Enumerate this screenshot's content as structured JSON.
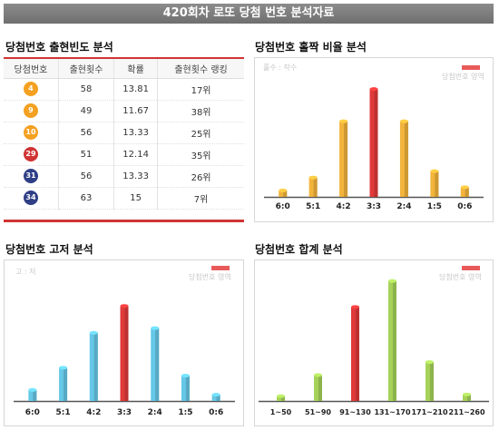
{
  "header": {
    "title": "420회차 로또 당첨 번호 분석자료"
  },
  "frequency": {
    "title": "당첨번호 출현빈도 분석",
    "columns": [
      "당첨번호",
      "출현횟수",
      "확률",
      "출현횟수 랭킹"
    ],
    "rows": [
      {
        "number": "4",
        "color": "#f4a020",
        "count": "58",
        "prob": "13.81",
        "rank": "17위"
      },
      {
        "number": "9",
        "color": "#f4a020",
        "count": "49",
        "prob": "11.67",
        "rank": "38위"
      },
      {
        "number": "10",
        "color": "#f4a020",
        "count": "56",
        "prob": "13.33",
        "rank": "25위"
      },
      {
        "number": "29",
        "color": "#d03434",
        "count": "51",
        "prob": "12.14",
        "rank": "35위"
      },
      {
        "number": "31",
        "color": "#2f3f86",
        "count": "56",
        "prob": "13.33",
        "rank": "26위"
      },
      {
        "number": "34",
        "color": "#2f3f86",
        "count": "63",
        "prob": "15",
        "rank": "7위"
      }
    ]
  },
  "legend_label": "당첨번호 영역",
  "chart_data": [
    {
      "id": "odd-even",
      "type": "bar",
      "title": "당첨번호 홀짝 비율 분석",
      "subtitle": "홀수 : 작수",
      "categories": [
        "6:0",
        "5:1",
        "4:2",
        "3:3",
        "2:4",
        "1:5",
        "0:6"
      ],
      "values": [
        4,
        12,
        47,
        67,
        47,
        16,
        6
      ],
      "highlight": "3:3",
      "bar_color": "#f2b43c",
      "highlight_color": "#e03a3a",
      "ylim": [
        0,
        75
      ]
    },
    {
      "id": "high-low",
      "type": "bar",
      "title": "당첨번호 고저 분석",
      "subtitle": "고 : 저",
      "categories": [
        "6:0",
        "5:1",
        "4:2",
        "3:3",
        "2:4",
        "1:5",
        "0:6"
      ],
      "values": [
        7,
        21,
        43,
        60,
        46,
        16,
        4
      ],
      "highlight": "3:3",
      "bar_color": "#66c7e6",
      "highlight_color": "#e03a3a",
      "ylim": [
        0,
        75
      ]
    },
    {
      "id": "sum",
      "type": "bar",
      "title": "당첨번호 합계 분석",
      "subtitle": "",
      "categories": [
        "1~50",
        "51~90",
        "91~130",
        "131~170",
        "171~210",
        "211~260"
      ],
      "values": [
        3,
        16,
        58,
        74,
        24,
        4
      ],
      "highlight": "91~130",
      "bar_color": "#a6d25a",
      "highlight_color": "#e03a3a",
      "ylim": [
        0,
        80
      ]
    }
  ]
}
